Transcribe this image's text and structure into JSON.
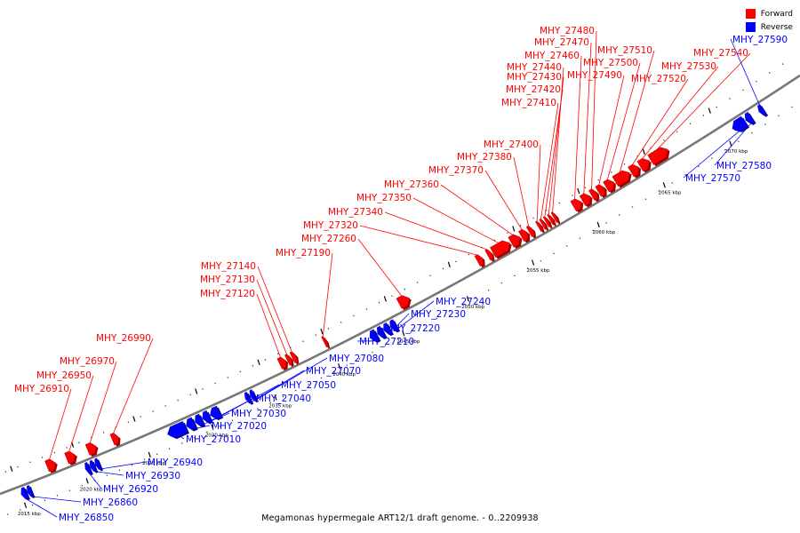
{
  "legend": {
    "forward": {
      "label": "Forward",
      "color": "#ff0000"
    },
    "reverse": {
      "label": "Reverse",
      "color": "#0000ff"
    }
  },
  "caption": "Megamonas hypermegale ART12/1 draft genome. - 0..2209938",
  "ticks": [
    {
      "pos": 2015,
      "label": "2015 kbp"
    },
    {
      "pos": 2020,
      "label": "2020 kbp"
    },
    {
      "pos": 2025,
      "label": "2025 kbp"
    },
    {
      "pos": 2030,
      "label": "2030 kbp"
    },
    {
      "pos": 2035,
      "label": "2035 kbp"
    },
    {
      "pos": 2040,
      "label": "2040 kbp"
    },
    {
      "pos": 2045,
      "label": "2045 kbp"
    },
    {
      "pos": 2050,
      "label": "2050 kbp"
    },
    {
      "pos": 2055,
      "label": "2055 kbp"
    },
    {
      "pos": 2060,
      "label": "2060 kbp"
    },
    {
      "pos": 2065,
      "label": "2065 kbp"
    },
    {
      "pos": 2070,
      "label": "2070 kbp"
    }
  ],
  "genes_forward": [
    {
      "id": "MHY_26910",
      "start": 2017.6,
      "end": 2018.3
    },
    {
      "id": "MHY_26950",
      "start": 2019.2,
      "end": 2019.9
    },
    {
      "id": "MHY_26970",
      "start": 2020.9,
      "end": 2021.6
    },
    {
      "id": "MHY_26990",
      "start": 2022.9,
      "end": 2023.4
    },
    {
      "id": "MHY_27120",
      "start": 2036.3,
      "end": 2036.8
    },
    {
      "id": "MHY_27130",
      "start": 2036.9,
      "end": 2037.2
    },
    {
      "id": "MHY_27140",
      "start": 2037.3,
      "end": 2037.6
    },
    {
      "id": "MHY_27190",
      "start": 2039.8,
      "end": 2040.0
    },
    {
      "id": "MHY_27260",
      "start": 2045.7,
      "end": 2046.5
    },
    {
      "id": "MHY_27320",
      "start": 2051.8,
      "end": 2052.2
    },
    {
      "id": "MHY_27340",
      "start": 2052.6,
      "end": 2052.9
    },
    {
      "id": "MHY_27350",
      "start": 2053.0,
      "end": 2054.3
    },
    {
      "id": "MHY_27360",
      "start": 2054.4,
      "end": 2055.1
    },
    {
      "id": "MHY_27370",
      "start": 2055.2,
      "end": 2055.7
    },
    {
      "id": "MHY_27380",
      "start": 2055.8,
      "end": 2056.1
    },
    {
      "id": "MHY_27400",
      "start": 2056.5,
      "end": 2056.7
    },
    {
      "id": "MHY_27410",
      "start": 2056.8,
      "end": 2057.0
    },
    {
      "id": "MHY_27420",
      "start": 2057.1,
      "end": 2057.3
    },
    {
      "id": "MHY_27430",
      "start": 2057.4,
      "end": 2057.6
    },
    {
      "id": "MHY_27440",
      "start": 2057.7,
      "end": 2057.9
    },
    {
      "id": "MHY_27460",
      "start": 2059.2,
      "end": 2059.8
    },
    {
      "id": "MHY_27470",
      "start": 2059.9,
      "end": 2060.5
    },
    {
      "id": "MHY_27480",
      "start": 2060.6,
      "end": 2061.0
    },
    {
      "id": "MHY_27490",
      "start": 2061.1,
      "end": 2061.6
    },
    {
      "id": "MHY_27500",
      "start": 2061.7,
      "end": 2062.3
    },
    {
      "id": "MHY_27510",
      "start": 2062.4,
      "end": 2063.5
    },
    {
      "id": "MHY_27520",
      "start": 2063.6,
      "end": 2064.2
    },
    {
      "id": "MHY_27530",
      "start": 2064.3,
      "end": 2065.0
    },
    {
      "id": "MHY_27540",
      "start": 2065.1,
      "end": 2066.4
    }
  ],
  "genes_reverse": [
    {
      "id": "MHY_26850",
      "start": 2015.0,
      "end": 2015.4
    },
    {
      "id": "MHY_26860",
      "start": 2015.5,
      "end": 2015.8
    },
    {
      "id": "MHY_26920",
      "start": 2020.2,
      "end": 2020.5
    },
    {
      "id": "MHY_26930",
      "start": 2020.6,
      "end": 2020.9
    },
    {
      "id": "MHY_26940",
      "start": 2021.0,
      "end": 2021.3
    },
    {
      "id": "MHY_27010",
      "start": 2026.8,
      "end": 2028.2
    },
    {
      "id": "MHY_27020",
      "start": 2028.3,
      "end": 2028.9
    },
    {
      "id": "MHY_27030",
      "start": 2029.0,
      "end": 2029.5
    },
    {
      "id": "MHY_27040",
      "start": 2029.6,
      "end": 2030.1
    },
    {
      "id": "MHY_27050",
      "start": 2030.2,
      "end": 2030.9
    },
    {
      "id": "MHY_27070",
      "start": 2033.0,
      "end": 2033.3
    },
    {
      "id": "MHY_27080",
      "start": 2033.4,
      "end": 2033.7
    },
    {
      "id": "MHY_27210",
      "start": 2042.8,
      "end": 2043.3
    },
    {
      "id": "MHY_27220",
      "start": 2043.4,
      "end": 2043.8
    },
    {
      "id": "MHY_27230",
      "start": 2043.9,
      "end": 2044.3
    },
    {
      "id": "MHY_27240",
      "start": 2044.4,
      "end": 2044.8
    },
    {
      "id": "MHY_27570",
      "start": 2070.6,
      "end": 2071.5
    },
    {
      "id": "MHY_27580",
      "start": 2071.6,
      "end": 2072.0
    },
    {
      "id": "MHY_27590",
      "start": 2072.6,
      "end": 2072.9
    }
  ]
}
